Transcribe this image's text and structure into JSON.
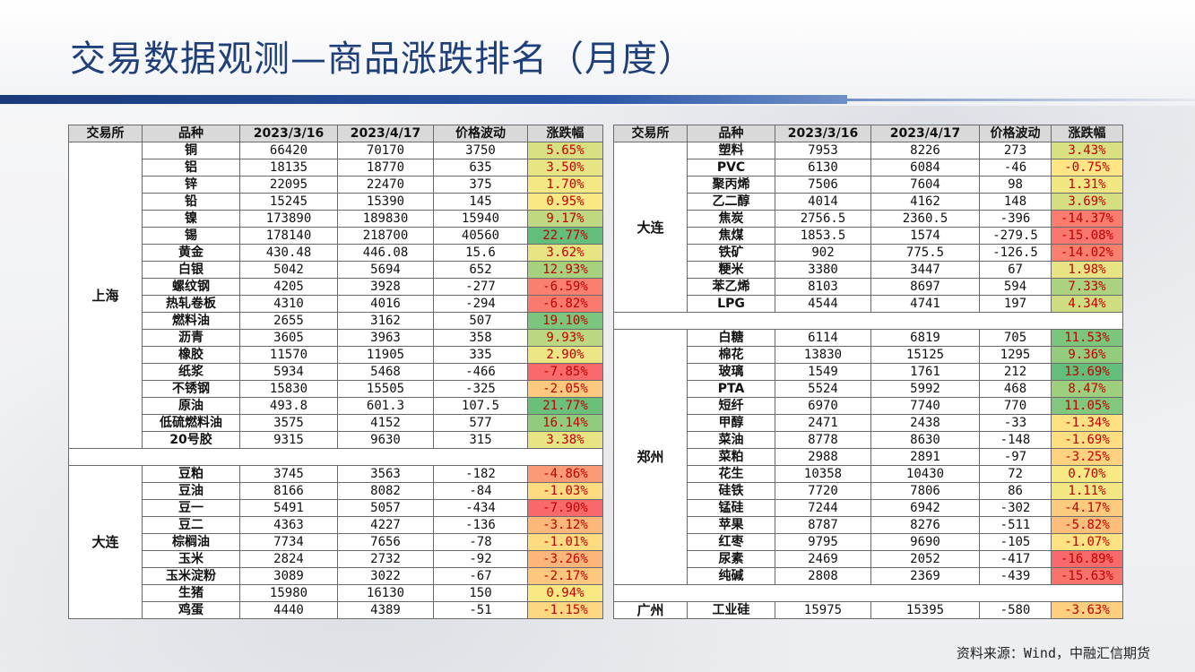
{
  "title": "交易数据观测—商品涨跌排名（月度）",
  "source": "资料来源：Wind，中融汇信期货",
  "headers": [
    "交易所",
    "品种",
    "2023/3/16",
    "2023/4/17",
    "价格波动",
    "涨跌幅"
  ],
  "left_groups": [
    {
      "exchange": "上海",
      "rows": [
        [
          "铜",
          "66420",
          "70170",
          "3750",
          "5.65%"
        ],
        [
          "铝",
          "18135",
          "18770",
          "635",
          "3.50%"
        ],
        [
          "锌",
          "22095",
          "22470",
          "375",
          "1.70%"
        ],
        [
          "铅",
          "15245",
          "15390",
          "145",
          "0.95%"
        ],
        [
          "镍",
          "173890",
          "189830",
          "15940",
          "9.17%"
        ],
        [
          "锡",
          "178140",
          "218700",
          "40560",
          "22.77%"
        ],
        [
          "黄金",
          "430.48",
          "446.08",
          "15.6",
          "3.62%"
        ],
        [
          "白银",
          "5042",
          "5694",
          "652",
          "12.93%"
        ],
        [
          "螺纹钢",
          "4205",
          "3928",
          "-277",
          "-6.59%"
        ],
        [
          "热轧卷板",
          "4310",
          "4016",
          "-294",
          "-6.82%"
        ],
        [
          "燃料油",
          "2655",
          "3162",
          "507",
          "19.10%"
        ],
        [
          "沥青",
          "3605",
          "3963",
          "358",
          "9.93%"
        ],
        [
          "橡胶",
          "11570",
          "11905",
          "335",
          "2.90%"
        ],
        [
          "纸浆",
          "5934",
          "5468",
          "-466",
          "-7.85%"
        ],
        [
          "不锈钢",
          "15830",
          "15505",
          "-325",
          "-2.05%"
        ],
        [
          "原油",
          "493.8",
          "601.3",
          "107.5",
          "21.77%"
        ],
        [
          "低硫燃料油",
          "3575",
          "4152",
          "577",
          "16.14%"
        ],
        [
          "20号胶",
          "9315",
          "9630",
          "315",
          "3.38%"
        ]
      ]
    },
    {
      "exchange": "大连",
      "rows": [
        [
          "豆粕",
          "3745",
          "3563",
          "-182",
          "-4.86%"
        ],
        [
          "豆油",
          "8166",
          "8082",
          "-84",
          "-1.03%"
        ],
        [
          "豆一",
          "5491",
          "5057",
          "-434",
          "-7.90%"
        ],
        [
          "豆二",
          "4363",
          "4227",
          "-136",
          "-3.12%"
        ],
        [
          "棕榈油",
          "7734",
          "7656",
          "-78",
          "-1.01%"
        ],
        [
          "玉米",
          "2824",
          "2732",
          "-92",
          "-3.26%"
        ],
        [
          "玉米淀粉",
          "3089",
          "3022",
          "-67",
          "-2.17%"
        ],
        [
          "生猪",
          "15980",
          "16130",
          "150",
          "0.94%"
        ],
        [
          "鸡蛋",
          "4440",
          "4389",
          "-51",
          "-1.15%"
        ]
      ]
    }
  ],
  "right_groups": [
    {
      "exchange": "大连",
      "rows": [
        [
          "塑料",
          "7953",
          "8226",
          "273",
          "3.43%"
        ],
        [
          "PVC",
          "6130",
          "6084",
          "-46",
          "-0.75%"
        ],
        [
          "聚丙烯",
          "7506",
          "7604",
          "98",
          "1.31%"
        ],
        [
          "乙二醇",
          "4014",
          "4162",
          "148",
          "3.69%"
        ],
        [
          "焦炭",
          "2756.5",
          "2360.5",
          "-396",
          "-14.37%"
        ],
        [
          "焦煤",
          "1853.5",
          "1574",
          "-279.5",
          "-15.08%"
        ],
        [
          "铁矿",
          "902",
          "775.5",
          "-126.5",
          "-14.02%"
        ],
        [
          "粳米",
          "3380",
          "3447",
          "67",
          "1.98%"
        ],
        [
          "苯乙烯",
          "8103",
          "8697",
          "594",
          "7.33%"
        ],
        [
          "LPG",
          "4544",
          "4741",
          "197",
          "4.34%"
        ]
      ]
    },
    {
      "exchange": "郑州",
      "rows": [
        [
          "白糖",
          "6114",
          "6819",
          "705",
          "11.53%"
        ],
        [
          "棉花",
          "13830",
          "15125",
          "1295",
          "9.36%"
        ],
        [
          "玻璃",
          "1549",
          "1761",
          "212",
          "13.69%"
        ],
        [
          "PTA",
          "5524",
          "5992",
          "468",
          "8.47%"
        ],
        [
          "短纤",
          "6970",
          "7740",
          "770",
          "11.05%"
        ],
        [
          "甲醇",
          "2471",
          "2438",
          "-33",
          "-1.34%"
        ],
        [
          "菜油",
          "8778",
          "8630",
          "-148",
          "-1.69%"
        ],
        [
          "菜粕",
          "2988",
          "2891",
          "-97",
          "-3.25%"
        ],
        [
          "花生",
          "10358",
          "10430",
          "72",
          "0.70%"
        ],
        [
          "硅铁",
          "7720",
          "7806",
          "86",
          "1.11%"
        ],
        [
          "锰硅",
          "7244",
          "6942",
          "-302",
          "-4.17%"
        ],
        [
          "苹果",
          "8787",
          "8276",
          "-511",
          "-5.82%"
        ],
        [
          "红枣",
          "9795",
          "9690",
          "-105",
          "-1.07%"
        ],
        [
          "尿素",
          "2469",
          "2052",
          "-417",
          "-16.89%"
        ],
        [
          "纯碱",
          "2808",
          "2369",
          "-439",
          "-15.63%"
        ]
      ]
    },
    {
      "exchange": "广州",
      "rows": [
        [
          "工业硅",
          "15975",
          "15395",
          "-580",
          "-3.63%"
        ]
      ]
    }
  ],
  "colors": {
    "title": "#1f3f7a",
    "bar": "#1a3a7a",
    "change_text": "#c00000",
    "scale_low": "#f8696b",
    "scale_mid": "#ffeb84",
    "scale_high": "#63be7b"
  }
}
